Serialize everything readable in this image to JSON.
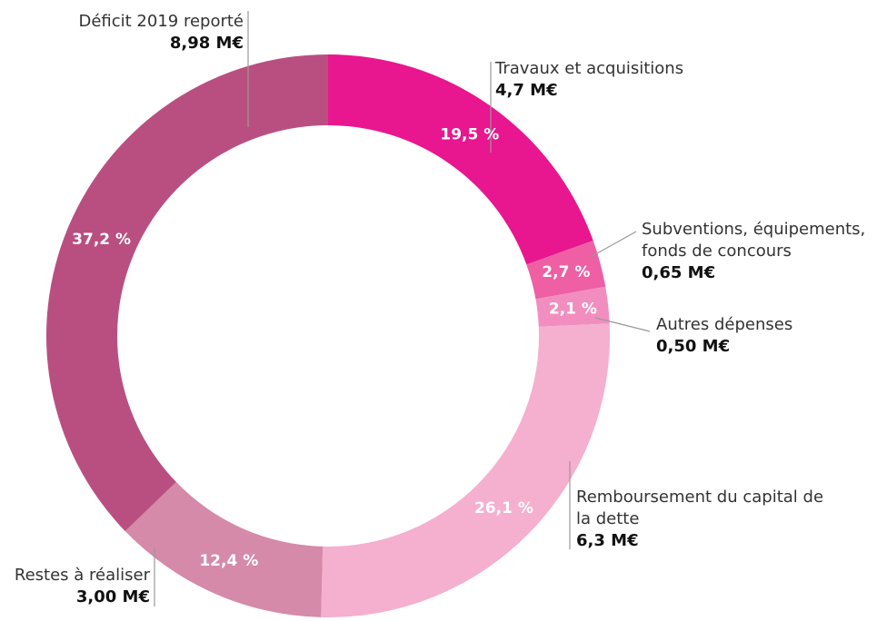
{
  "chart_data": {
    "type": "donut",
    "categories": [
      "Travaux et acquisitions",
      "Subventions, équipements, fonds de concours",
      "Autres dépenses",
      "Remboursement du capital de la dette",
      "Restes à réaliser",
      "Déficit 2019 reporté"
    ],
    "values": [
      19.5,
      2.7,
      2.1,
      26.1,
      12.4,
      37.2
    ],
    "value_labels": [
      "19,5 %",
      "2,7 %",
      "2,1 %",
      "26,1 %",
      "12,4 %",
      "37,2 %"
    ],
    "amounts": [
      "4,7 M€",
      "0,65 M€",
      "0,50 M€",
      "6,3 M€",
      "3,00 M€",
      "8,98 M€"
    ],
    "colors": [
      "#e8168f",
      "#ee5fa3",
      "#f28ebf",
      "#f5afcf",
      "#d48aa8",
      "#b94f80"
    ]
  }
}
